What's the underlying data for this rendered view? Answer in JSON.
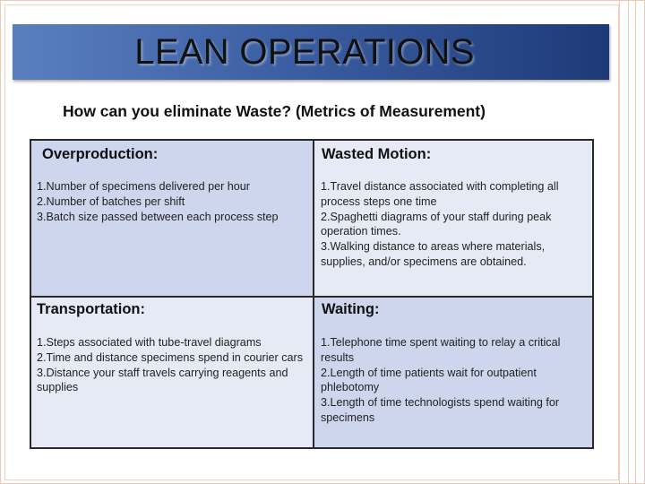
{
  "title": "LEAN OPERATIONS",
  "subtitle": "How can you eliminate Waste? (Metrics of Measurement)",
  "sections": [
    {
      "heading": "Overproduction:",
      "items": [
        "1.Number of specimens delivered per hour",
        "2.Number of batches per shift",
        "3.Batch size passed between each process step"
      ]
    },
    {
      "heading": "Wasted Motion:",
      "items": [
        "1.Travel distance associated with completing all process steps one time",
        "2.Spaghetti diagrams of your staff during peak operation times.",
        "3.Walking distance to areas where materials, supplies, and/or specimens are obtained."
      ]
    },
    {
      "heading": "Transportation:",
      "items": [
        "1.Steps associated with tube-travel diagrams",
        "2.Time and distance specimens spend in courier cars",
        "3.Distance your staff travels carrying reagents and supplies"
      ]
    },
    {
      "heading": "Waiting:",
      "items": [
        "1.Telephone time spent waiting to relay a critical results",
        "2.Length of time patients wait for outpatient phlebotomy",
        "3.Length of time technologists spend waiting for specimens"
      ]
    }
  ]
}
